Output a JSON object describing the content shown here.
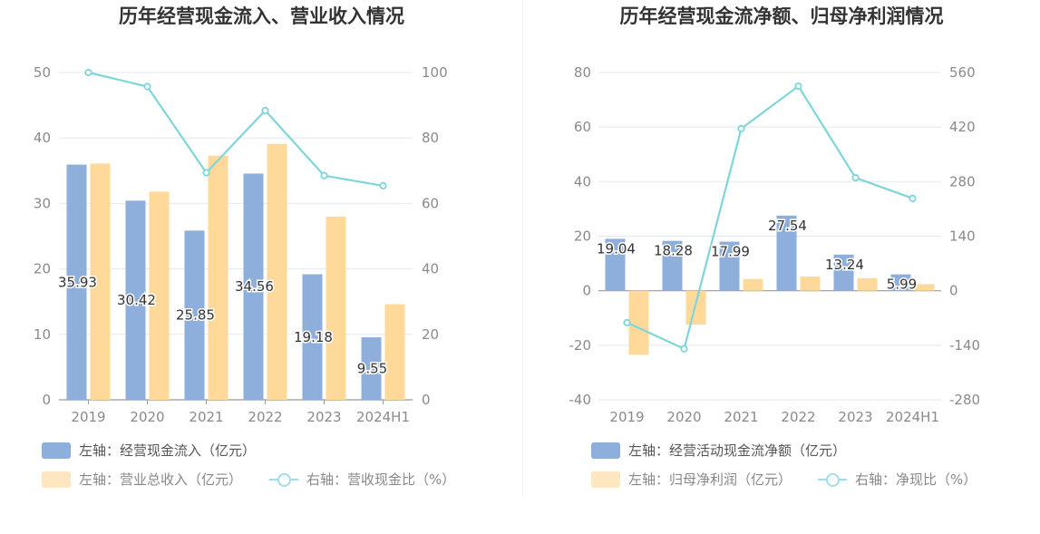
{
  "colors": {
    "blue": "#8eaedc",
    "orange": "#fed999",
    "line": "#7fd6d9",
    "grid": "#e3e7ef",
    "axis": "#999999",
    "tick": "#8a8a8a"
  },
  "chart_data": [
    {
      "type": "bar",
      "title": "历年经营现金流入、营业收入情况",
      "categories": [
        "2019",
        "2020",
        "2021",
        "2022",
        "2023",
        "2024H1"
      ],
      "y_left": {
        "ticks": [
          "0",
          "10",
          "20",
          "30",
          "40",
          "50"
        ],
        "range": [
          0,
          50
        ]
      },
      "y_right": {
        "ticks": [
          "0",
          "20",
          "40",
          "60",
          "80",
          "100"
        ],
        "range": [
          0,
          100
        ]
      },
      "series": [
        {
          "name": "左轴：经营现金流入（亿元）",
          "type": "bar",
          "axis": "left",
          "color": "#8eaedc",
          "values": [
            35.93,
            30.42,
            25.85,
            34.56,
            19.18,
            9.55
          ],
          "labels": [
            "35.93",
            "30.42",
            "25.85",
            "34.56",
            "19.18",
            "9.55"
          ]
        },
        {
          "name": "左轴：营业总收入（亿元）",
          "type": "bar",
          "axis": "left",
          "color": "#fed999",
          "values": [
            36.1,
            31.8,
            37.3,
            39.1,
            28.0,
            14.6
          ]
        },
        {
          "name": "右轴：营收现金比（%）",
          "type": "line",
          "axis": "right",
          "color": "#7fd6d9",
          "values": [
            100.0,
            95.7,
            69.4,
            88.4,
            68.5,
            65.4
          ]
        }
      ],
      "legend": {
        "position": "bottom-left"
      }
    },
    {
      "type": "bar",
      "title": "历年经营现金流净额、归母净利润情况",
      "categories": [
        "2019",
        "2020",
        "2021",
        "2022",
        "2023",
        "2024H1"
      ],
      "y_left": {
        "ticks": [
          "-40",
          "-20",
          "0",
          "20",
          "40",
          "60",
          "80"
        ],
        "range": [
          -40,
          80
        ]
      },
      "y_right": {
        "ticks": [
          "-280",
          "-140",
          "0",
          "140",
          "280",
          "420",
          "560"
        ],
        "range": [
          -280,
          560
        ]
      },
      "series": [
        {
          "name": "左轴：经营活动现金流净额（亿元）",
          "type": "bar",
          "axis": "left",
          "color": "#8eaedc",
          "values": [
            19.04,
            18.28,
            17.99,
            27.54,
            13.24,
            5.99
          ],
          "labels": [
            "19.04",
            "18.28",
            "17.99",
            "27.54",
            "13.24",
            "5.99"
          ]
        },
        {
          "name": "左轴：归母净利润（亿元）",
          "type": "bar",
          "axis": "left",
          "color": "#fed999",
          "values": [
            -23.5,
            -12.4,
            4.3,
            5.2,
            4.6,
            2.4
          ]
        },
        {
          "name": "右轴：净现比（%）",
          "type": "line",
          "axis": "right",
          "color": "#7fd6d9",
          "values": [
            -82,
            -149,
            416,
            525,
            290,
            237
          ]
        }
      ],
      "legend": {
        "position": "bottom-left"
      }
    }
  ]
}
